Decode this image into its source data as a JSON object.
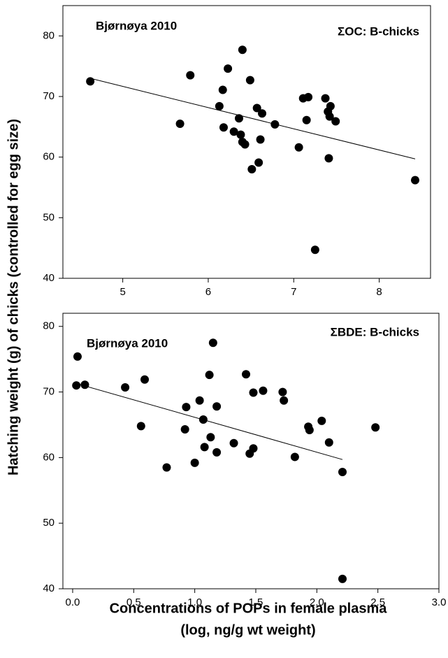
{
  "ylabel": "Hatching weight (g) of chicks (controlled for egg size)",
  "xlabel": [
    "Concentrations of POPs in female plasma",
    "(log, ng/g wt weight)"
  ],
  "chart_data": [
    {
      "type": "scatter",
      "color": "#000000",
      "annotations": [
        "Bjørnøya 2010",
        "ΣOC: B-chicks"
      ],
      "x": [
        4.62,
        5.67,
        5.79,
        6.23,
        6.4,
        6.49,
        6.13,
        6.17,
        6.18,
        6.3,
        6.36,
        6.38,
        6.4,
        6.43,
        6.57,
        6.63,
        6.59,
        6.61,
        6.51,
        6.78,
        7.06,
        7.11,
        7.17,
        7.15,
        7.25,
        7.37,
        7.4,
        7.43,
        7.42,
        7.49,
        7.41,
        8.42
      ],
      "y": [
        72.5,
        65.5,
        73.5,
        74.6,
        77.7,
        72.7,
        68.4,
        71.1,
        64.9,
        64.2,
        66.4,
        63.7,
        62.5,
        62.1,
        68.1,
        67.2,
        59.1,
        62.9,
        58.0,
        65.4,
        61.6,
        69.7,
        69.9,
        66.1,
        44.7,
        69.7,
        67.5,
        68.4,
        66.7,
        65.9,
        59.8,
        56.2
      ],
      "trendline": {
        "x": [
          4.62,
          8.42
        ],
        "y": [
          73.0,
          59.7
        ]
      },
      "xlim": [
        4.3,
        8.6
      ],
      "xticks": [
        5,
        6,
        7,
        8
      ],
      "ylim": [
        40,
        85
      ],
      "yticks": [
        40,
        50,
        60,
        70,
        80
      ]
    },
    {
      "type": "scatter",
      "color": "#000000",
      "annotations": [
        "Bjørnøya 2010",
        "ΣBDE: B-chicks"
      ],
      "x": [
        0.03,
        0.04,
        0.1,
        0.43,
        0.56,
        0.59,
        0.77,
        0.92,
        0.93,
        1.0,
        1.04,
        1.07,
        1.08,
        1.12,
        1.13,
        1.15,
        1.18,
        1.18,
        1.32,
        1.42,
        1.45,
        1.48,
        1.48,
        1.56,
        1.72,
        1.73,
        1.82,
        1.93,
        1.94,
        2.04,
        2.1,
        2.21,
        2.21,
        2.48
      ],
      "y": [
        71.0,
        75.4,
        71.1,
        70.7,
        64.8,
        71.9,
        58.5,
        64.3,
        67.7,
        59.2,
        68.7,
        65.8,
        61.6,
        72.6,
        63.1,
        77.5,
        67.8,
        60.8,
        62.2,
        72.7,
        60.6,
        61.4,
        69.9,
        70.2,
        70.0,
        68.7,
        60.1,
        64.7,
        64.2,
        65.6,
        62.3,
        57.8,
        41.5,
        64.6
      ],
      "trendline": {
        "x": [
          0.03,
          2.21
        ],
        "y": [
          71.3,
          59.7
        ]
      },
      "xlim": [
        -0.08,
        3.0
      ],
      "xticks": [
        {
          "value": 0,
          "label": "0.0"
        },
        {
          "value": 0.5,
          "label": "0.5"
        },
        {
          "value": 1,
          "label": "1.0"
        },
        {
          "value": 1.5,
          "label": "1.5"
        },
        {
          "value": 2,
          "label": "2.0"
        },
        {
          "value": 2.5,
          "label": "2.5"
        },
        {
          "value": 3,
          "label": "3.0"
        }
      ],
      "ylim": [
        40,
        82
      ],
      "yticks": [
        40,
        50,
        60,
        70,
        80
      ]
    }
  ]
}
